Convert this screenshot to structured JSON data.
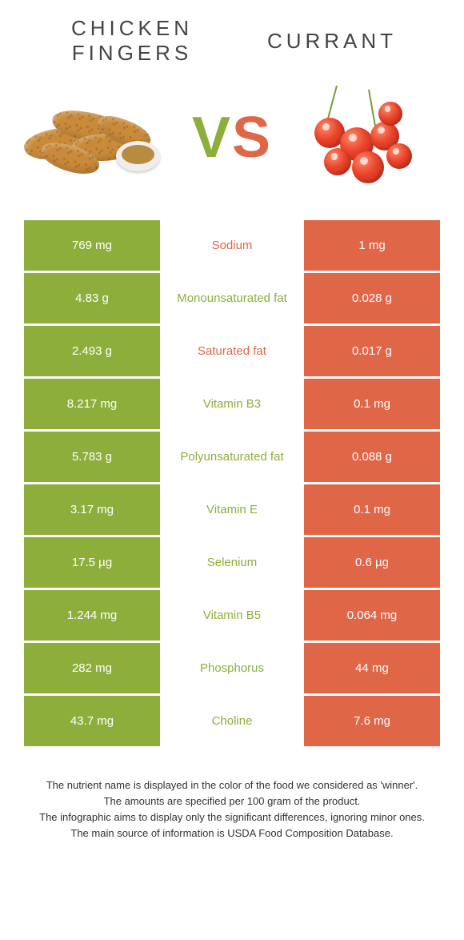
{
  "foods": {
    "left": {
      "name": "CHICKEN FINGERS",
      "color": "#8eae3c"
    },
    "right": {
      "name": "CURRANT",
      "color": "#e06648"
    }
  },
  "vs_label": "VS",
  "rows": [
    {
      "nutrient": "Sodium",
      "left": "769 mg",
      "right": "1 mg",
      "winner": "orange"
    },
    {
      "nutrient": "Monounsaturated fat",
      "left": "4.83 g",
      "right": "0.028 g",
      "winner": "green"
    },
    {
      "nutrient": "Saturated fat",
      "left": "2.493 g",
      "right": "0.017 g",
      "winner": "orange"
    },
    {
      "nutrient": "Vitamin B3",
      "left": "8.217 mg",
      "right": "0.1 mg",
      "winner": "green"
    },
    {
      "nutrient": "Polyunsaturated fat",
      "left": "5.783 g",
      "right": "0.088 g",
      "winner": "green"
    },
    {
      "nutrient": "Vitamin E",
      "left": "3.17 mg",
      "right": "0.1 mg",
      "winner": "green"
    },
    {
      "nutrient": "Selenium",
      "left": "17.5 µg",
      "right": "0.6 µg",
      "winner": "green"
    },
    {
      "nutrient": "Vitamin B5",
      "left": "1.244 mg",
      "right": "0.064 mg",
      "winner": "green"
    },
    {
      "nutrient": "Phosphorus",
      "left": "282 mg",
      "right": "44 mg",
      "winner": "green"
    },
    {
      "nutrient": "Choline",
      "left": "43.7 mg",
      "right": "7.6 mg",
      "winner": "green"
    }
  ],
  "colors": {
    "green": "#8eae3c",
    "orange": "#e06648"
  },
  "footnotes": [
    "The nutrient name is displayed in the color of the food we considered as 'winner'.",
    "The amounts are specified per 100 gram of the product.",
    "The infographic aims to display only the significant differences, ignoring minor ones.",
    "The main source of information is USDA Food Composition Database."
  ]
}
